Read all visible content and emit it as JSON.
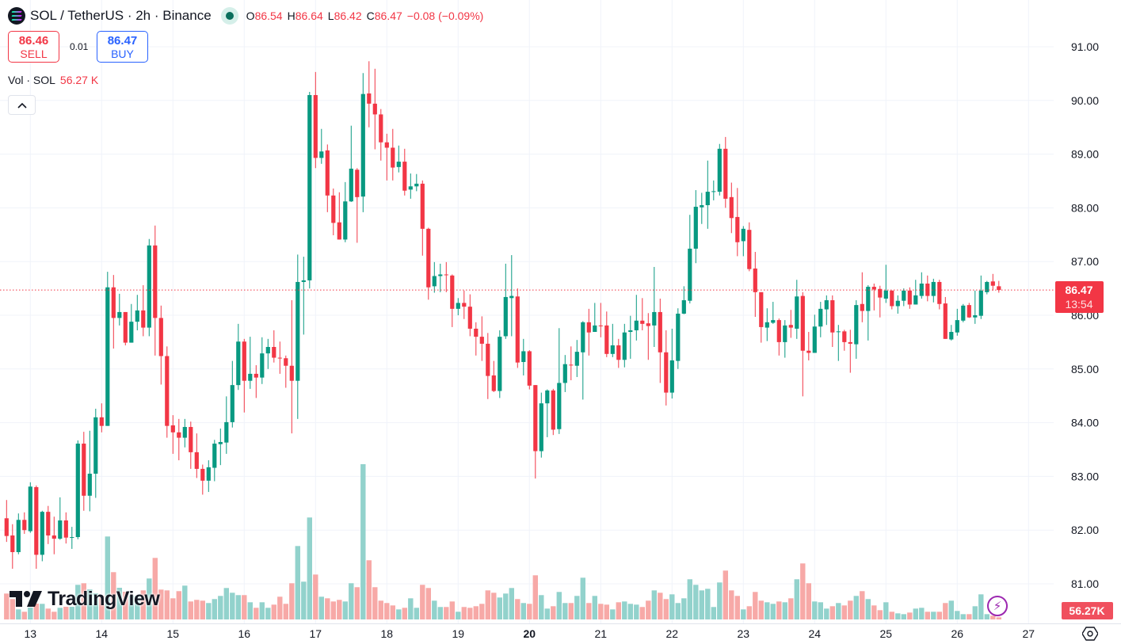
{
  "header": {
    "symbol": "SOL / TetherUS · 2h · Binance",
    "ohlc": {
      "o_label": "O",
      "o": "86.54",
      "h_label": "H",
      "h": "86.64",
      "l_label": "L",
      "l": "86.42",
      "c_label": "C",
      "c": "86.47",
      "change": "−0.08 (−0.09%)"
    },
    "market_status_icon": "market-open-dot-icon"
  },
  "trade": {
    "sell_price": "86.46",
    "sell_label": "SELL",
    "spread": "0.01",
    "buy_price": "86.47",
    "buy_label": "BUY"
  },
  "volume_legend": {
    "label": "Vol · SOL",
    "value": "56.27 K"
  },
  "collapse_icon": "chevron-up-icon",
  "logo": "TradingView",
  "price_tag": {
    "price": "86.47",
    "countdown": "13:54"
  },
  "volume_tag": "56.27K",
  "colors": {
    "up": "#089981",
    "down": "#f23645",
    "up_volume": "#92d2cc",
    "down_volume": "#f7a9a7",
    "grid": "#f0f3fa",
    "last_price_line": "#f23645"
  },
  "chart_data": {
    "type": "candlestick",
    "interval": "2h",
    "ylim": [
      80.5,
      91.5
    ],
    "yticks": [
      "91.00",
      "90.00",
      "89.00",
      "88.00",
      "87.00",
      "86.00",
      "85.00",
      "84.00",
      "83.00",
      "82.00",
      "81.00"
    ],
    "xticks": [
      "13",
      "14",
      "15",
      "16",
      "17",
      "18",
      "19",
      "20",
      "21",
      "22",
      "23",
      "24",
      "25",
      "26",
      "27"
    ],
    "xtick_bold": "20",
    "grid": true,
    "last_price": 86.47,
    "volume_unit": "K SOL",
    "candles_ohlc": [
      [
        82.22,
        82.56,
        81.78,
        81.89
      ],
      [
        81.9,
        82.11,
        81.28,
        81.59
      ],
      [
        81.59,
        82.31,
        81.55,
        82.19
      ],
      [
        82.19,
        82.33,
        81.93,
        82.0
      ],
      [
        81.98,
        82.89,
        81.95,
        82.81
      ],
      [
        82.8,
        82.83,
        81.28,
        81.54
      ],
      [
        81.54,
        82.36,
        81.42,
        82.34
      ],
      [
        82.34,
        82.45,
        81.74,
        81.9
      ],
      [
        81.9,
        82.25,
        81.55,
        81.84
      ],
      [
        81.84,
        82.61,
        81.82,
        82.18
      ],
      [
        82.18,
        82.33,
        81.75,
        81.86
      ],
      [
        81.86,
        82.06,
        81.65,
        81.87
      ],
      [
        81.87,
        83.67,
        81.83,
        83.61
      ],
      [
        83.61,
        83.83,
        82.36,
        82.64
      ],
      [
        82.64,
        83.85,
        82.35,
        83.05
      ],
      [
        83.05,
        84.26,
        82.6,
        84.1
      ],
      [
        84.1,
        84.36,
        83.82,
        83.94
      ],
      [
        83.94,
        86.81,
        83.94,
        86.52
      ],
      [
        86.52,
        86.75,
        85.38,
        85.95
      ],
      [
        85.95,
        86.4,
        85.81,
        86.06
      ],
      [
        86.06,
        86.06,
        85.44,
        85.49
      ],
      [
        85.49,
        86.21,
        85.49,
        85.88
      ],
      [
        85.88,
        86.38,
        85.72,
        86.09
      ],
      [
        86.09,
        86.56,
        85.61,
        85.77
      ],
      [
        85.77,
        87.42,
        85.61,
        87.3
      ],
      [
        87.3,
        87.67,
        85.25,
        85.95
      ],
      [
        85.95,
        86.18,
        84.71,
        85.24
      ],
      [
        85.24,
        85.42,
        83.72,
        83.94
      ],
      [
        83.95,
        84.14,
        83.42,
        83.82
      ],
      [
        83.82,
        84.07,
        83.3,
        83.72
      ],
      [
        83.72,
        84.07,
        83.54,
        83.92
      ],
      [
        83.92,
        84.02,
        83.14,
        83.45
      ],
      [
        83.45,
        83.8,
        82.97,
        83.14
      ],
      [
        83.14,
        83.22,
        82.66,
        82.92
      ],
      [
        82.92,
        83.3,
        82.71,
        83.17
      ],
      [
        83.16,
        83.68,
        82.91,
        83.61
      ],
      [
        83.6,
        83.89,
        83.21,
        83.64
      ],
      [
        83.63,
        84.49,
        83.42,
        84.01
      ],
      [
        84.01,
        85.15,
        83.91,
        84.7
      ],
      [
        84.7,
        85.84,
        84.61,
        85.51
      ],
      [
        85.51,
        85.56,
        84.19,
        84.78
      ],
      [
        84.78,
        85.6,
        84.63,
        84.91
      ],
      [
        84.91,
        85.07,
        84.46,
        84.84
      ],
      [
        84.84,
        85.59,
        84.72,
        85.29
      ],
      [
        85.29,
        85.56,
        85.0,
        85.41
      ],
      [
        85.41,
        85.72,
        85.12,
        85.21
      ],
      [
        85.21,
        85.51,
        84.91,
        85.2
      ],
      [
        85.2,
        85.25,
        84.65,
        85.06
      ],
      [
        85.06,
        86.28,
        83.8,
        84.78
      ],
      [
        84.78,
        87.13,
        84.07,
        86.62
      ],
      [
        86.62,
        87.09,
        85.64,
        86.65
      ],
      [
        86.65,
        90.16,
        86.5,
        90.1
      ],
      [
        90.1,
        90.53,
        88.74,
        88.93
      ],
      [
        88.93,
        89.47,
        88.82,
        89.05
      ],
      [
        89.07,
        89.18,
        87.92,
        88.23
      ],
      [
        88.23,
        88.36,
        87.49,
        87.72
      ],
      [
        87.73,
        88.29,
        87.41,
        87.41
      ],
      [
        87.41,
        88.48,
        87.36,
        88.12
      ],
      [
        88.12,
        89.53,
        88.11,
        88.73
      ],
      [
        88.71,
        88.74,
        87.35,
        88.2
      ],
      [
        88.21,
        90.51,
        87.92,
        90.12
      ],
      [
        90.13,
        90.73,
        89.5,
        89.94
      ],
      [
        89.94,
        90.59,
        89.09,
        89.74
      ],
      [
        89.74,
        89.84,
        88.88,
        89.22
      ],
      [
        89.22,
        89.38,
        88.51,
        89.12
      ],
      [
        89.12,
        89.47,
        88.51,
        88.75
      ],
      [
        88.76,
        89.16,
        88.66,
        88.86
      ],
      [
        88.86,
        89.1,
        88.23,
        88.32
      ],
      [
        88.34,
        88.64,
        88.17,
        88.4
      ],
      [
        88.4,
        88.63,
        88.31,
        88.45
      ],
      [
        88.45,
        88.51,
        87.11,
        87.61
      ],
      [
        87.61,
        87.63,
        86.29,
        86.52
      ],
      [
        86.54,
        86.99,
        86.42,
        86.73
      ],
      [
        86.73,
        86.96,
        86.43,
        86.76
      ],
      [
        86.76,
        86.99,
        86.43,
        86.75
      ],
      [
        86.74,
        86.76,
        85.78,
        86.12
      ],
      [
        86.12,
        86.32,
        86.0,
        86.23
      ],
      [
        86.23,
        86.46,
        85.93,
        86.16
      ],
      [
        86.16,
        86.39,
        85.61,
        85.75
      ],
      [
        85.75,
        85.87,
        85.25,
        85.6
      ],
      [
        85.6,
        85.98,
        85.15,
        85.47
      ],
      [
        85.47,
        85.67,
        84.44,
        84.87
      ],
      [
        84.88,
        85.15,
        84.57,
        84.59
      ],
      [
        84.59,
        85.72,
        84.46,
        85.6
      ],
      [
        85.61,
        86.96,
        85.56,
        86.34
      ],
      [
        86.32,
        87.12,
        85.61,
        86.36
      ],
      [
        86.35,
        86.5,
        85.02,
        85.12
      ],
      [
        85.13,
        85.56,
        84.88,
        85.33
      ],
      [
        85.33,
        85.35,
        84.62,
        84.69
      ],
      [
        84.7,
        84.7,
        82.96,
        83.47
      ],
      [
        83.47,
        84.56,
        83.35,
        84.36
      ],
      [
        84.36,
        84.62,
        83.73,
        84.6
      ],
      [
        84.6,
        84.63,
        83.77,
        83.87
      ],
      [
        83.88,
        85.76,
        83.79,
        84.74
      ],
      [
        84.74,
        85.26,
        84.57,
        85.09
      ],
      [
        85.08,
        85.42,
        84.79,
        85.07
      ],
      [
        85.06,
        85.54,
        84.85,
        85.32
      ],
      [
        85.31,
        85.89,
        84.43,
        85.87
      ],
      [
        85.87,
        86.12,
        85.25,
        85.68
      ],
      [
        85.69,
        86.23,
        85.69,
        85.81
      ],
      [
        85.81,
        86.23,
        85.59,
        85.8
      ],
      [
        85.81,
        86.07,
        85.22,
        85.28
      ],
      [
        85.28,
        85.84,
        85.22,
        85.44
      ],
      [
        85.44,
        85.56,
        85.02,
        85.17
      ],
      [
        85.17,
        85.84,
        85.03,
        85.68
      ],
      [
        85.69,
        85.99,
        85.19,
        85.72
      ],
      [
        85.72,
        86.38,
        85.53,
        85.9
      ],
      [
        85.9,
        86.32,
        85.72,
        85.84
      ],
      [
        85.85,
        86.04,
        85.17,
        85.8
      ],
      [
        85.81,
        86.9,
        85.41,
        86.06
      ],
      [
        86.06,
        86.31,
        84.74,
        85.31
      ],
      [
        85.31,
        85.72,
        84.32,
        84.56
      ],
      [
        84.56,
        85.75,
        84.45,
        85.16
      ],
      [
        85.15,
        86.13,
        85.0,
        86.03
      ],
      [
        86.03,
        86.54,
        86.02,
        86.28
      ],
      [
        86.27,
        87.87,
        86.22,
        87.24
      ],
      [
        87.24,
        88.33,
        86.97,
        88.02
      ],
      [
        88.01,
        88.28,
        87.7,
        88.05
      ],
      [
        88.05,
        88.88,
        87.61,
        88.3
      ],
      [
        88.3,
        88.51,
        88.14,
        88.31
      ],
      [
        88.3,
        89.19,
        88.23,
        89.1
      ],
      [
        89.1,
        89.32,
        88.0,
        88.17
      ],
      [
        88.2,
        88.47,
        87.53,
        87.81
      ],
      [
        87.83,
        88.37,
        87.1,
        87.36
      ],
      [
        87.38,
        87.66,
        87.1,
        87.61
      ],
      [
        87.59,
        87.73,
        86.82,
        86.86
      ],
      [
        86.87,
        87.18,
        85.97,
        86.43
      ],
      [
        86.43,
        86.43,
        85.49,
        85.78
      ],
      [
        85.77,
        86.13,
        85.52,
        85.87
      ],
      [
        85.86,
        86.25,
        85.84,
        85.91
      ],
      [
        85.91,
        85.94,
        85.25,
        85.5
      ],
      [
        85.5,
        85.91,
        85.21,
        85.81
      ],
      [
        85.82,
        86.1,
        85.58,
        85.77
      ],
      [
        85.75,
        86.66,
        85.56,
        86.35
      ],
      [
        86.36,
        86.43,
        84.49,
        85.34
      ],
      [
        85.34,
        85.69,
        85.16,
        85.3
      ],
      [
        85.3,
        86.01,
        85.3,
        85.79
      ],
      [
        85.79,
        86.25,
        85.59,
        86.12
      ],
      [
        86.11,
        86.37,
        85.82,
        86.28
      ],
      [
        86.28,
        86.37,
        85.41,
        85.68
      ],
      [
        85.69,
        85.82,
        85.15,
        85.7
      ],
      [
        85.7,
        85.73,
        85.34,
        85.5
      ],
      [
        85.5,
        85.73,
        84.93,
        85.47
      ],
      [
        85.46,
        86.28,
        85.19,
        86.19
      ],
      [
        86.21,
        86.8,
        85.87,
        86.08
      ],
      [
        86.08,
        86.56,
        85.53,
        86.53
      ],
      [
        86.53,
        86.59,
        86.09,
        86.48
      ],
      [
        86.49,
        86.55,
        85.96,
        86.33
      ],
      [
        86.31,
        86.94,
        86.23,
        86.46
      ],
      [
        86.46,
        86.46,
        86.11,
        86.17
      ],
      [
        86.17,
        86.37,
        86.03,
        86.27
      ],
      [
        86.27,
        86.5,
        86.17,
        86.46
      ],
      [
        86.46,
        86.52,
        86.12,
        86.2
      ],
      [
        86.2,
        86.66,
        86.2,
        86.37
      ],
      [
        86.36,
        86.8,
        86.31,
        86.59
      ],
      [
        86.59,
        86.74,
        86.26,
        86.36
      ],
      [
        86.36,
        86.68,
        86.24,
        86.62
      ],
      [
        86.62,
        86.66,
        86.11,
        86.21
      ],
      [
        86.22,
        86.34,
        85.56,
        85.56
      ],
      [
        85.55,
        85.82,
        85.53,
        85.69
      ],
      [
        85.68,
        86.12,
        85.62,
        85.91
      ],
      [
        85.9,
        86.21,
        85.87,
        86.18
      ],
      [
        86.19,
        86.23,
        85.95,
        85.96
      ],
      [
        85.96,
        86.46,
        85.84,
        86.0
      ],
      [
        85.99,
        86.74,
        85.93,
        86.46
      ],
      [
        86.43,
        86.64,
        86.39,
        86.62
      ],
      [
        86.63,
        86.77,
        86.46,
        86.55
      ],
      [
        86.54,
        86.64,
        86.42,
        86.47
      ]
    ],
    "volumes": [
      680,
      535,
      264,
      202,
      312,
      416,
      410,
      285,
      202,
      306,
      333,
      333,
      909,
      951,
      790,
      686,
      624,
      2178,
      1242,
      832,
      728,
      624,
      624,
      763,
      1075,
      1616,
      784,
      763,
      555,
      743,
      888,
      472,
      514,
      493,
      431,
      535,
      618,
      826,
      701,
      639,
      639,
      451,
      306,
      451,
      306,
      389,
      597,
      410,
      951,
      1928,
      992,
      2677,
      1179,
      597,
      555,
      472,
      514,
      472,
      951,
      847,
      4077,
      1554,
      847,
      493,
      431,
      368,
      264,
      306,
      555,
      306,
      909,
      826,
      493,
      327,
      327,
      472,
      202,
      327,
      306,
      347,
      410,
      763,
      701,
      576,
      680,
      826,
      535,
      431,
      410,
      1159,
      639,
      285,
      347,
      722,
      431,
      431,
      618,
      1096,
      431,
      618,
      410,
      389,
      264,
      451,
      472,
      410,
      389,
      327,
      493,
      763,
      701,
      535,
      659,
      431,
      555,
      1055,
      909,
      763,
      805,
      327,
      971,
      1283,
      763,
      618,
      264,
      347,
      722,
      493,
      451,
      410,
      472,
      451,
      555,
      1055,
      1471,
      951,
      472,
      451,
      285,
      347,
      431,
      368,
      493,
      618,
      743,
      535,
      368,
      243,
      451,
      202,
      160,
      139,
      181,
      285,
      306,
      202,
      202,
      202,
      431,
      493,
      223,
      139,
      139,
      347,
      659,
      139,
      98,
      56.27
    ]
  }
}
